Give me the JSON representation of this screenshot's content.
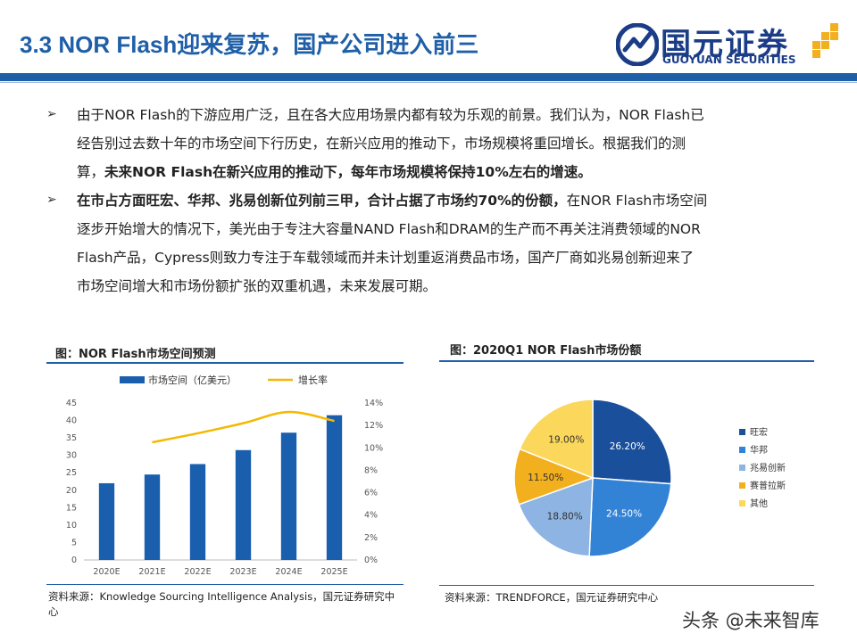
{
  "header": {
    "title": "3.3 NOR Flash迎来复苏，国产公司进入前三",
    "logo_cn": "国元证券",
    "logo_en": "GUOYUAN SECURITIES",
    "accent_color": "#1f5fa8"
  },
  "bullets": [
    {
      "marker": "➢",
      "lines": [
        [
          {
            "t": "由于NOR Flash的下游应用广泛，且在各大应用场景内都有较为乐观的前景。我们认为，NOR Flash已",
            "b": false
          }
        ],
        [
          {
            "t": "经告别过去数十年的市场空间下行历史，在新兴应用的推动下，市场规模将重回增长。根据我们的测",
            "b": false
          }
        ],
        [
          {
            "t": "算，",
            "b": false
          },
          {
            "t": "未来NOR Flash在新兴应用的推动下，每年市场规模将保持10%左右的增速。",
            "b": true
          }
        ]
      ]
    },
    {
      "marker": "➢",
      "lines": [
        [
          {
            "t": "在市占方面旺宏、华邦、兆易创新位列前三甲，合计占据了市场约70%的份额，",
            "b": true
          },
          {
            "t": "在NOR Flash市场空间",
            "b": false
          }
        ],
        [
          {
            "t": "逐步开始增大的情况下，美光由于专注大容量NAND Flash和DRAM的生产而不再关注消费领域的NOR",
            "b": false
          }
        ],
        [
          {
            "t": "Flash产品，Cypress则致力专注于车载领域而并未计划重返消费品市场，国产厂商如兆易创新迎来了",
            "b": false
          }
        ],
        [
          {
            "t": "市场空间增大和市场份额扩张的双重机遇，未来发展可期。",
            "b": false
          }
        ]
      ]
    }
  ],
  "chart_data": [
    {
      "type": "bar",
      "title": "图：NOR Flash市场空间预测",
      "categories": [
        "2020E",
        "2021E",
        "2022E",
        "2023E",
        "2024E",
        "2025E"
      ],
      "series": [
        {
          "name": "市场空间（亿美元）",
          "type": "bar",
          "axis": "left",
          "color": "#1a5eae",
          "values": [
            22,
            24.5,
            27.5,
            31.5,
            36.5,
            41.5
          ]
        },
        {
          "name": "增长率",
          "type": "line",
          "axis": "right",
          "color": "#f5b800",
          "values": [
            null,
            10.5,
            11.3,
            12.2,
            13.2,
            12.4
          ]
        }
      ],
      "ylim": [
        0,
        45
      ],
      "y_ticks": [
        "0",
        "5",
        "10",
        "15",
        "20",
        "25",
        "30",
        "35",
        "40",
        "45"
      ],
      "y2lim": [
        0,
        14
      ],
      "y2_ticks": [
        "0%",
        "2%",
        "4%",
        "6%",
        "8%",
        "10%",
        "12%",
        "14%"
      ],
      "legend_position": "top",
      "grid": false,
      "source": "资料来源：Knowledge Sourcing Intelligence Analysis，国元证券研究中心"
    },
    {
      "type": "pie",
      "title": "图：2020Q1 NOR Flash市场份额",
      "labels": [
        "旺宏",
        "华邦",
        "兆易创新",
        "赛普拉斯",
        "其他"
      ],
      "values": [
        26.2,
        24.5,
        18.8,
        11.5,
        19.0
      ],
      "value_labels": [
        "26.20%",
        "24.50%",
        "18.80%",
        "11.50%",
        "19.00%"
      ],
      "colors": [
        "#1a4f9c",
        "#3282d6",
        "#8db4e2",
        "#f2b01e",
        "#fbd75b"
      ],
      "label_colors": [
        "#ffffff",
        "#ffffff",
        "#333333",
        "#333333",
        "#333333"
      ],
      "legend_position": "right",
      "source": "资料来源：TRENDFORCE，国元证券研究中心"
    }
  ],
  "watermark": "头条 @未来智库"
}
